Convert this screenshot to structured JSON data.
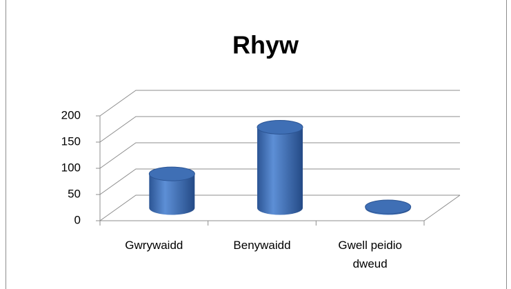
{
  "chart_data": {
    "type": "bar3d",
    "title": "Rhyw",
    "categories": [
      "Gwrywaidd",
      "Benywaidd",
      "Gwell peidio dweud"
    ],
    "values": [
      65,
      154,
      2
    ],
    "color": "#3f6fb5",
    "ylim": [
      0,
      200
    ],
    "yticks": [
      0,
      50,
      100,
      150,
      200
    ],
    "grid": true
  }
}
